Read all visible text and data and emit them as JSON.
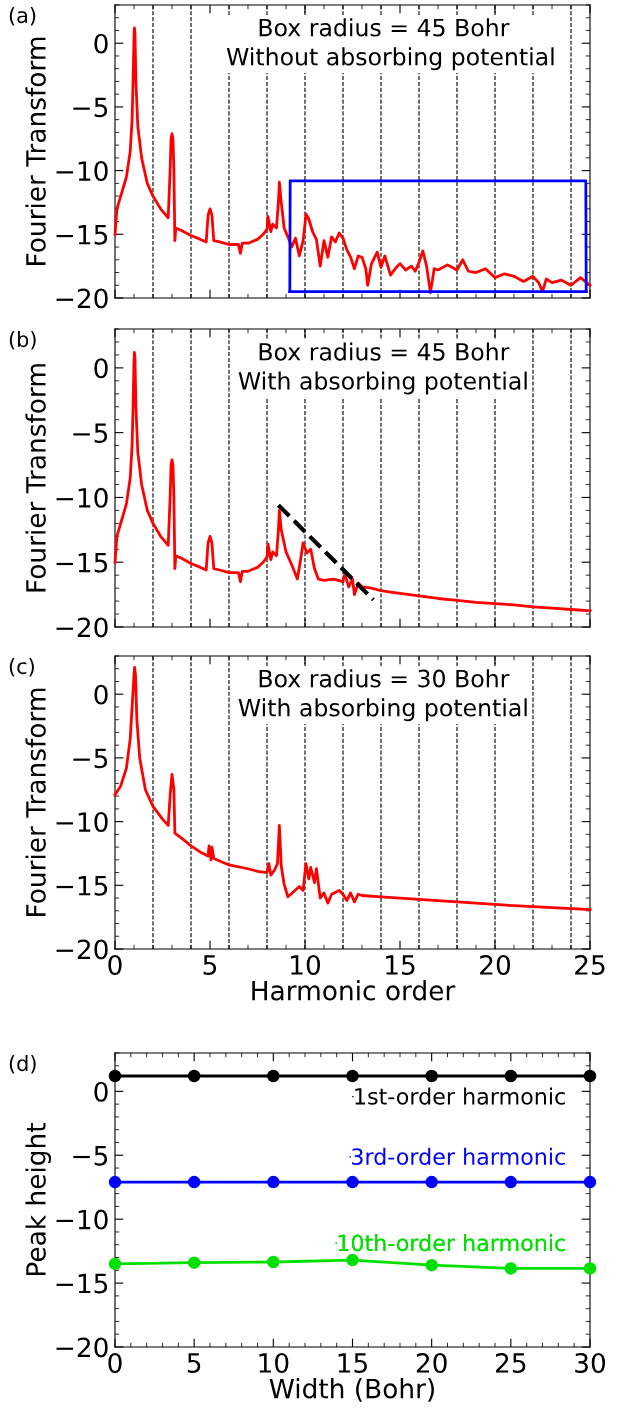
{
  "chart_data": [
    {
      "type": "line",
      "ylabel": "Fourier Transform",
      "annotations": [
        "(a)",
        "Box radius = 45 Bohr\n  Without absorbing potential"
      ],
      "xlim": [
        0,
        25
      ],
      "xticks": [
        0,
        5,
        10,
        15,
        20,
        25
      ],
      "ylim": [
        -20,
        3
      ],
      "yticks": [
        -20,
        -15,
        -10,
        -5,
        0
      ],
      "tick_labels": "y",
      "grid": false,
      "marker": "none",
      "ref_lines": [
        {
          "axis": "x",
          "value": 2,
          "color": "#000000",
          "line_style": "dashed"
        },
        {
          "axis": "x",
          "value": 4,
          "color": "#000000",
          "line_style": "dashed"
        },
        {
          "axis": "x",
          "value": 6,
          "color": "#000000",
          "line_style": "dashed"
        },
        {
          "axis": "x",
          "value": 8,
          "color": "#000000",
          "line_style": "dashed"
        },
        {
          "axis": "x",
          "value": 10,
          "color": "#000000",
          "line_style": "dashed"
        },
        {
          "axis": "x",
          "value": 12,
          "color": "#000000",
          "line_style": "dashed"
        },
        {
          "axis": "x",
          "value": 14,
          "color": "#000000",
          "line_style": "dashed"
        },
        {
          "axis": "x",
          "value": 16,
          "color": "#000000",
          "line_style": "dashed"
        },
        {
          "axis": "x",
          "value": 18,
          "color": "#000000",
          "line_style": "dashed"
        },
        {
          "axis": "x",
          "value": 20,
          "color": "#000000",
          "line_style": "dashed"
        },
        {
          "axis": "x",
          "value": 22,
          "color": "#000000",
          "line_style": "dashed"
        },
        {
          "axis": "x",
          "value": 24,
          "color": "#000000",
          "line_style": "dashed"
        }
      ],
      "series": [
        {
          "color": "#ff0000",
          "x": [
            0,
            0.1,
            0.3,
            0.6,
            0.8,
            0.9,
            0.95,
            1.0,
            1.02,
            1.05,
            1.1,
            1.2,
            1.4,
            1.7,
            2.0,
            2.4,
            2.8,
            2.9,
            2.95,
            3.0,
            3.05,
            3.1,
            3.15,
            3.2,
            3.5,
            4.0,
            4.5,
            4.8,
            4.9,
            5.0,
            5.1,
            5.2,
            5.5,
            6.0,
            6.5,
            6.6,
            6.7,
            7.0,
            7.5,
            7.8,
            8.0,
            8.05,
            8.2,
            8.3,
            8.5,
            8.6,
            8.65,
            8.75,
            8.9,
            9.1,
            9.3,
            9.5,
            9.7,
            9.9,
            10.0,
            10.05,
            10.2,
            10.4,
            10.6,
            10.8,
            11.0,
            11.2,
            11.4,
            11.6,
            11.8,
            12.0,
            12.2,
            12.4,
            12.6,
            12.8,
            13.0,
            13.2,
            13.3,
            13.5,
            13.8,
            14.0,
            14.2,
            14.5,
            14.8,
            15.0,
            15.3,
            15.6,
            15.8,
            16.0,
            16.2,
            16.4,
            16.6,
            16.8,
            17.0,
            17.5,
            18.0,
            18.3,
            18.6,
            19.0,
            19.5,
            20.0,
            20.5,
            21.0,
            21.5,
            22.0,
            22.3,
            22.5,
            22.7,
            23.0,
            23.5,
            24.0,
            24.5,
            25.0
          ],
          "values": [
            -15,
            -13,
            -12,
            -10.5,
            -8.5,
            -6,
            -3,
            0.5,
            1.2,
            0.8,
            -3,
            -6.5,
            -9,
            -11,
            -12,
            -13,
            -13.7,
            -10,
            -7.5,
            -7.1,
            -7.5,
            -10,
            -15.5,
            -14.5,
            -14.7,
            -15.1,
            -15.4,
            -15.6,
            -13.5,
            -13,
            -13.5,
            -15.5,
            -15.6,
            -15.8,
            -15.8,
            -16.5,
            -15.7,
            -15.7,
            -15.4,
            -15.0,
            -14.6,
            -13.6,
            -14.8,
            -14.2,
            -14.5,
            -12.5,
            -10.9,
            -12.5,
            -14.5,
            -15.2,
            -16,
            -15.3,
            -16.7,
            -15.5,
            -14.2,
            -13.4,
            -13.8,
            -14.8,
            -15.4,
            -17.5,
            -15.5,
            -16.8,
            -15.2,
            -15.6,
            -14.9,
            -15.3,
            -16.2,
            -16.8,
            -17.7,
            -16.7,
            -16.8,
            -17.7,
            -19,
            -17.3,
            -16.4,
            -17.6,
            -16.7,
            -18.2,
            -17.6,
            -17.3,
            -17.8,
            -17.5,
            -17.9,
            -17.2,
            -16.3,
            -17.5,
            -19.6,
            -17.7,
            -17.8,
            -17.4,
            -17.8,
            -17.0,
            -17.9,
            -18.0,
            -17.7,
            -18.4,
            -18.1,
            -18.3,
            -18.7,
            -18.3,
            -18.8,
            -19.5,
            -18.5,
            -18.8,
            -18.6,
            -19.0,
            -18.4,
            -19.0
          ]
        },
        {
          "color": "#0000ff",
          "x": [
            9.2,
            9.22,
            24.78,
            24.8
          ],
          "values": [
            -19.5,
            -10.8,
            -10.8,
            -19.5
          ]
        },
        {
          "color": "#0000ff",
          "x": [
            9.2,
            24.8
          ],
          "values": [
            -19.5,
            -19.5
          ]
        }
      ]
    },
    {
      "type": "line",
      "ylabel": "Fourier Transform",
      "annotations": [
        "(b)",
        "Box radius = 45 Bohr\nWith absorbing potential"
      ],
      "xlim": [
        0,
        25
      ],
      "xticks": [
        0,
        5,
        10,
        15,
        20,
        25
      ],
      "ylim": [
        -20,
        3
      ],
      "yticks": [
        -20,
        -15,
        -10,
        -5,
        0
      ],
      "tick_labels": "y",
      "grid": false,
      "marker": "none",
      "ref_lines": [
        {
          "axis": "x",
          "value": 2,
          "color": "#000000",
          "line_style": "dashed"
        },
        {
          "axis": "x",
          "value": 4,
          "color": "#000000",
          "line_style": "dashed"
        },
        {
          "axis": "x",
          "value": 6,
          "color": "#000000",
          "line_style": "dashed"
        },
        {
          "axis": "x",
          "value": 8,
          "color": "#000000",
          "line_style": "dashed"
        },
        {
          "axis": "x",
          "value": 10,
          "color": "#000000",
          "line_style": "dashed"
        },
        {
          "axis": "x",
          "value": 12,
          "color": "#000000",
          "line_style": "dashed"
        },
        {
          "axis": "x",
          "value": 14,
          "color": "#000000",
          "line_style": "dashed"
        },
        {
          "axis": "x",
          "value": 16,
          "color": "#000000",
          "line_style": "dashed"
        },
        {
          "axis": "x",
          "value": 18,
          "color": "#000000",
          "line_style": "dashed"
        },
        {
          "axis": "x",
          "value": 20,
          "color": "#000000",
          "line_style": "dashed"
        },
        {
          "axis": "x",
          "value": 22,
          "color": "#000000",
          "line_style": "dashed"
        },
        {
          "axis": "x",
          "value": 24,
          "color": "#000000",
          "line_style": "dashed"
        }
      ],
      "series": [
        {
          "color": "#ff0000",
          "x": [
            0,
            0.1,
            0.3,
            0.6,
            0.8,
            0.9,
            0.95,
            1.0,
            1.02,
            1.05,
            1.1,
            1.2,
            1.4,
            1.7,
            2.0,
            2.4,
            2.8,
            2.9,
            2.95,
            3.0,
            3.05,
            3.1,
            3.15,
            3.2,
            3.5,
            4.0,
            4.5,
            4.8,
            4.9,
            5.0,
            5.1,
            5.2,
            5.5,
            6.0,
            6.5,
            6.6,
            6.7,
            7.0,
            7.5,
            7.8,
            8.0,
            8.05,
            8.2,
            8.3,
            8.5,
            8.6,
            8.65,
            8.75,
            9.0,
            9.3,
            9.6,
            9.8,
            9.9,
            10.1,
            10.3,
            10.5,
            10.7,
            11.0,
            11.5,
            12.0,
            12.1,
            12.3,
            12.5,
            12.6,
            12.8,
            13.0,
            13.5,
            14.0,
            14.5,
            15.0,
            16.0,
            17.0,
            18.0,
            19.0,
            20.0,
            21.0,
            22.0,
            23.0,
            24.0,
            25.0
          ],
          "values": [
            -15,
            -13,
            -12,
            -10.5,
            -8.5,
            -6,
            -3,
            0.5,
            1.2,
            0.8,
            -3,
            -6.5,
            -9,
            -11,
            -12,
            -13,
            -13.7,
            -10,
            -7.5,
            -7.1,
            -7.5,
            -10,
            -15.5,
            -14.5,
            -14.7,
            -15.1,
            -15.4,
            -15.6,
            -13.5,
            -13,
            -13.5,
            -15.5,
            -15.6,
            -15.8,
            -15.8,
            -16.5,
            -15.7,
            -15.7,
            -15.4,
            -15.0,
            -14.6,
            -13.6,
            -14.8,
            -14.2,
            -14.5,
            -12.5,
            -11.0,
            -12.5,
            -14.2,
            -15.2,
            -16.3,
            -14.5,
            -13.5,
            -14.3,
            -14.0,
            -15.5,
            -16.3,
            -16.4,
            -16.3,
            -16.5,
            -15.9,
            -16.9,
            -16.3,
            -17.5,
            -16.6,
            -16.9,
            -17.0,
            -17.2,
            -17.3,
            -17.4,
            -17.6,
            -17.8,
            -17.95,
            -18.1,
            -18.2,
            -18.3,
            -18.45,
            -18.55,
            -18.65,
            -18.75
          ]
        },
        {
          "color": "#000000",
          "line_style": "dashed",
          "x": [
            8.6,
            13.6
          ],
          "values": [
            -10.6,
            -17.9
          ]
        }
      ]
    },
    {
      "type": "line",
      "ylabel": "Fourier Transform",
      "xlabel": "Harmonic order",
      "annotations": [
        "(c)",
        "Box radius = 30 Bohr\nWith absorbing potential"
      ],
      "xlim": [
        0,
        25
      ],
      "xticks": [
        0,
        5,
        10,
        15,
        20,
        25
      ],
      "ylim": [
        -20,
        3
      ],
      "yticks": [
        -20,
        -15,
        -10,
        -5,
        0
      ],
      "grid": false,
      "marker": "none",
      "ref_lines": [
        {
          "axis": "x",
          "value": 2,
          "color": "#000000",
          "line_style": "dashed"
        },
        {
          "axis": "x",
          "value": 4,
          "color": "#000000",
          "line_style": "dashed"
        },
        {
          "axis": "x",
          "value": 6,
          "color": "#000000",
          "line_style": "dashed"
        },
        {
          "axis": "x",
          "value": 8,
          "color": "#000000",
          "line_style": "dashed"
        },
        {
          "axis": "x",
          "value": 10,
          "color": "#000000",
          "line_style": "dashed"
        },
        {
          "axis": "x",
          "value": 12,
          "color": "#000000",
          "line_style": "dashed"
        },
        {
          "axis": "x",
          "value": 14,
          "color": "#000000",
          "line_style": "dashed"
        },
        {
          "axis": "x",
          "value": 16,
          "color": "#000000",
          "line_style": "dashed"
        },
        {
          "axis": "x",
          "value": 18,
          "color": "#000000",
          "line_style": "dashed"
        },
        {
          "axis": "x",
          "value": 20,
          "color": "#000000",
          "line_style": "dashed"
        },
        {
          "axis": "x",
          "value": 22,
          "color": "#000000",
          "line_style": "dashed"
        },
        {
          "axis": "x",
          "value": 24,
          "color": "#000000",
          "line_style": "dashed"
        }
      ],
      "series": [
        {
          "color": "#ff0000",
          "x": [
            0,
            0.3,
            0.6,
            0.8,
            0.9,
            1.0,
            1.03,
            1.08,
            1.15,
            1.3,
            1.6,
            2.0,
            2.5,
            2.8,
            2.9,
            3.0,
            3.1,
            3.15,
            3.5,
            4.0,
            4.5,
            4.9,
            4.95,
            5.05,
            5.1,
            5.2,
            6.0,
            7.0,
            7.5,
            8.0,
            8.1,
            8.2,
            8.4,
            8.55,
            8.65,
            8.75,
            8.9,
            9.1,
            9.4,
            9.7,
            9.9,
            10.05,
            10.2,
            10.3,
            10.5,
            10.6,
            10.8,
            11.0,
            11.2,
            11.4,
            11.8,
            12.0,
            12.2,
            12.4,
            12.6,
            12.8,
            13.0,
            14.0,
            15.0,
            17.0,
            19.0,
            21.0,
            23.0,
            25.0
          ],
          "values": [
            -7.9,
            -7.2,
            -5.8,
            -3.5,
            -1,
            1.5,
            2.1,
            1.5,
            -2,
            -5,
            -7.5,
            -8.8,
            -9.8,
            -10.3,
            -8,
            -6.3,
            -7.5,
            -10.9,
            -11.3,
            -11.9,
            -12.4,
            -12.7,
            -11.9,
            -13.0,
            -12,
            -12.9,
            -13.4,
            -13.7,
            -13.9,
            -14.0,
            -13.3,
            -14.2,
            -13.8,
            -13.3,
            -10.3,
            -13.5,
            -14.9,
            -15.9,
            -15.5,
            -15.1,
            -15.4,
            -13.3,
            -14.5,
            -13.6,
            -14.8,
            -13.7,
            -16.0,
            -15.6,
            -16.4,
            -15.7,
            -15.4,
            -15.7,
            -16.2,
            -15.6,
            -16.3,
            -15.7,
            -15.8,
            -15.9,
            -16.0,
            -16.2,
            -16.4,
            -16.6,
            -16.75,
            -16.9
          ]
        }
      ]
    },
    {
      "type": "line",
      "ylabel": "Peak height",
      "xlabel": "Width (Bohr)",
      "annotations": [
        "(d)"
      ],
      "xlim": [
        0,
        30
      ],
      "xticks": [
        0,
        5,
        10,
        15,
        20,
        25,
        30
      ],
      "ylim": [
        -20,
        3
      ],
      "yticks": [
        -20,
        -15,
        -10,
        -5,
        0
      ],
      "grid": false,
      "marker": "circle",
      "legend": "right",
      "series": [
        {
          "name": "1st-order harmonic",
          "color": "#000000",
          "x": [
            0,
            5,
            10,
            15,
            20,
            25,
            30
          ],
          "values": [
            1.2,
            1.2,
            1.2,
            1.2,
            1.2,
            1.2,
            1.2
          ]
        },
        {
          "name": "3rd-order harmonic",
          "color": "#0000ff",
          "x": [
            0,
            5,
            10,
            15,
            20,
            25,
            30
          ],
          "values": [
            -7.1,
            -7.1,
            -7.1,
            -7.1,
            -7.1,
            -7.1,
            -7.1
          ]
        },
        {
          "name": "10th-order harmonic",
          "color": "#00e000",
          "x": [
            0,
            5,
            10,
            15,
            20,
            25,
            30
          ],
          "values": [
            -13.5,
            -13.4,
            -13.35,
            -13.2,
            -13.6,
            -13.85,
            -13.85
          ]
        }
      ]
    }
  ]
}
